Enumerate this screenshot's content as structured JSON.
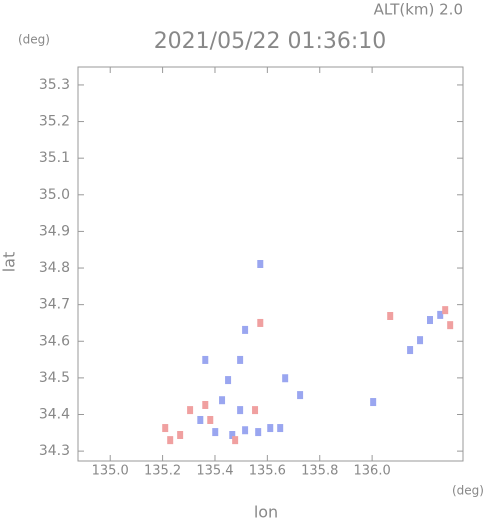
{
  "chart_data": {
    "type": "scatter",
    "title": "2021/05/22 01:36:10",
    "subtitle": "ALT(km) 2.0",
    "x_label": "lon",
    "y_label": "lat",
    "x_unit": "(deg)",
    "y_unit": "(deg)",
    "xlim": [
      134.877,
      136.347
    ],
    "ylim": [
      34.273,
      35.349
    ],
    "xticks": [
      {
        "value": 135,
        "label": "135.0"
      },
      135.2,
      135.4,
      135.6,
      135.8,
      {
        "value": 136,
        "label": "136.0"
      }
    ],
    "yticks": [
      34.3,
      34.4,
      34.5,
      34.6,
      34.7,
      34.8,
      34.9,
      {
        "value": 35,
        "label": "35.0"
      },
      35.1,
      35.2,
      35.3
    ],
    "series": [
      {
        "color": "#9aa6f0",
        "x": [
          135.573,
          135.515,
          135.496,
          135.45,
          135.427,
          135.496,
          135.515,
          135.466,
          135.565,
          135.611,
          135.649,
          136.145,
          136.183,
          136.221,
          136.26,
          136.004,
          135.725,
          135.668,
          135.363,
          135.344,
          135.401
        ],
        "values": [
          34.811,
          34.631,
          34.549,
          34.494,
          34.439,
          34.412,
          34.357,
          34.344,
          34.352,
          34.363,
          34.363,
          34.576,
          34.603,
          34.658,
          34.672,
          34.434,
          34.453,
          34.499,
          34.549,
          34.385,
          34.352
        ]
      },
      {
        "color": "#f0a0a0",
        "x": [
          135.21,
          135.267,
          135.305,
          135.363,
          135.382,
          135.553,
          135.573,
          136.069,
          136.279,
          136.298,
          135.477,
          135.229
        ],
        "values": [
          34.363,
          34.344,
          34.412,
          34.426,
          34.385,
          34.412,
          34.65,
          34.669,
          34.685,
          34.644,
          34.33,
          34.33
        ]
      }
    ]
  }
}
